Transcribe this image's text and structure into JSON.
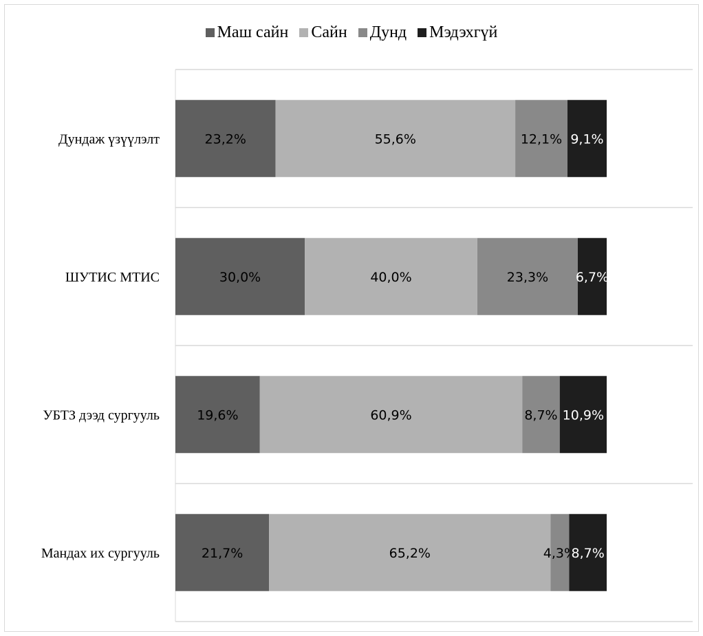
{
  "chart_data": {
    "type": "bar",
    "orientation": "horizontal",
    "stacked": true,
    "categories": [
      "Дундаж үзүүлэлт",
      "ШУТИС МТИС",
      "УБТЗ дээд сургууль",
      "Мандах их сургууль"
    ],
    "series": [
      {
        "name": "Маш сайн",
        "color": "#5f5f5f",
        "label_color": "#000000",
        "values": [
          23.2,
          30.0,
          19.6,
          21.7
        ],
        "labels": [
          "23,2%",
          "30,0%",
          "19,6%",
          "21,7%"
        ]
      },
      {
        "name": "Сайн",
        "color": "#b2b2b2",
        "label_color": "#000000",
        "values": [
          55.6,
          40.0,
          60.9,
          65.2
        ],
        "labels": [
          "55,6%",
          "40,0%",
          "60,9%",
          "65,2%"
        ]
      },
      {
        "name": "Дунд",
        "color": "#898989",
        "label_color": "#000000",
        "values": [
          12.1,
          23.3,
          8.7,
          4.3
        ],
        "labels": [
          "12,1%",
          "23,3%",
          "8,7%",
          "4,3%"
        ]
      },
      {
        "name": "Мэдэхгүй",
        "color": "#1e1e1e",
        "label_color": "#ffffff",
        "values": [
          9.1,
          6.7,
          10.9,
          8.7
        ],
        "labels": [
          "9,1%",
          "6,7%",
          "10,9%",
          "8,7%"
        ]
      }
    ],
    "xlim": [
      0,
      100
    ],
    "legend_position": "top",
    "gridlines": "horizontal separators between categories"
  }
}
